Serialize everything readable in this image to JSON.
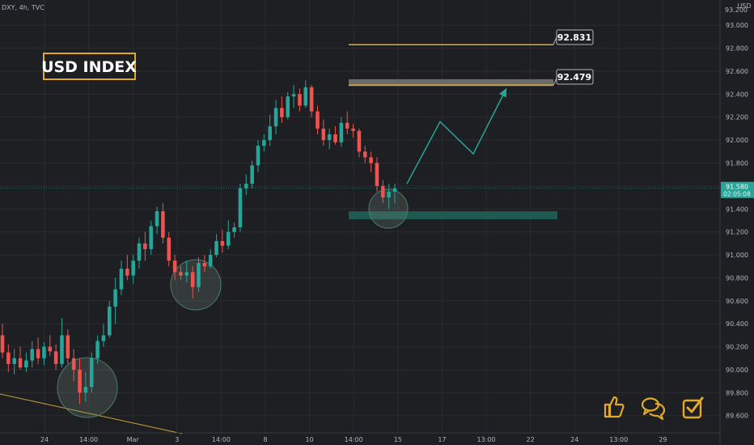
{
  "header": {
    "symbol_line": "DXY, 4h, TVC"
  },
  "price_axis_currency": "USD",
  "badge": {
    "text": "USD INDEX",
    "color": "#e3a92a"
  },
  "annotations": {
    "target1": "92.831",
    "target2": "92.479"
  },
  "current_price": {
    "price": "91.580",
    "countdown": "02:05:08"
  },
  "icons": [
    "thumbs-up-icon",
    "chat-icon",
    "checkbox-icon"
  ],
  "colors": {
    "up": "#26a69a",
    "down": "#ef5350",
    "accent": "#e3a92a",
    "zone": "#1f5a52",
    "resistance_zone": "#6b6b6b",
    "arrow": "#26a69a"
  },
  "chart_data": {
    "type": "candlestick",
    "timeframe": "4h",
    "y_ticks": [
      "93.000",
      "92.800",
      "92.600",
      "92.400",
      "92.200",
      "92.000",
      "91.800",
      "91.600",
      "91.400",
      "91.200",
      "91.000",
      "90.800",
      "90.600",
      "90.400",
      "90.200",
      "90.000",
      "89.800",
      "89.600"
    ],
    "y_top_cut_label": "93.200",
    "x_ticks": [
      "24",
      "14:00",
      "Mar",
      "3",
      "14:00",
      "8",
      "10",
      "14:00",
      "15",
      "17",
      "13:00",
      "22",
      "24",
      "13:00",
      "29"
    ],
    "ylim": [
      89.45,
      93.22
    ],
    "candles": [
      [
        90.3,
        90.4,
        90.1,
        90.15
      ],
      [
        90.15,
        90.22,
        89.98,
        90.05
      ],
      [
        90.05,
        90.18,
        89.96,
        90.1
      ],
      [
        90.1,
        90.2,
        90.0,
        90.02
      ],
      [
        90.02,
        90.15,
        89.98,
        90.08
      ],
      [
        90.08,
        90.25,
        90.02,
        90.18
      ],
      [
        90.18,
        90.28,
        90.05,
        90.1
      ],
      [
        90.1,
        90.24,
        90.04,
        90.2
      ],
      [
        90.2,
        90.3,
        90.12,
        90.16
      ],
      [
        90.16,
        90.22,
        90.0,
        90.05
      ],
      [
        90.05,
        90.45,
        90.02,
        90.3
      ],
      [
        90.3,
        90.35,
        90.05,
        90.1
      ],
      [
        90.1,
        90.18,
        89.9,
        90.0
      ],
      [
        90.0,
        90.1,
        89.7,
        89.8
      ],
      [
        89.8,
        89.98,
        89.72,
        89.85
      ],
      [
        89.85,
        90.15,
        89.8,
        90.1
      ],
      [
        90.1,
        90.3,
        90.05,
        90.25
      ],
      [
        90.25,
        90.4,
        90.2,
        90.3
      ],
      [
        90.3,
        90.6,
        90.28,
        90.55
      ],
      [
        90.55,
        90.8,
        90.4,
        90.7
      ],
      [
        90.7,
        90.95,
        90.65,
        90.88
      ],
      [
        90.88,
        91.0,
        90.78,
        90.82
      ],
      [
        90.82,
        91.0,
        90.75,
        90.95
      ],
      [
        90.95,
        91.15,
        90.88,
        91.1
      ],
      [
        91.1,
        91.2,
        90.95,
        91.05
      ],
      [
        91.05,
        91.3,
        91.0,
        91.25
      ],
      [
        91.25,
        91.42,
        91.18,
        91.38
      ],
      [
        91.38,
        91.45,
        91.1,
        91.15
      ],
      [
        91.15,
        91.2,
        90.9,
        90.95
      ],
      [
        90.95,
        91.0,
        90.78,
        90.85
      ],
      [
        90.85,
        90.9,
        90.78,
        90.82
      ],
      [
        90.82,
        90.95,
        90.76,
        90.85
      ],
      [
        90.85,
        90.9,
        90.62,
        90.72
      ],
      [
        90.72,
        90.98,
        90.68,
        90.93
      ],
      [
        90.93,
        91.0,
        90.85,
        90.9
      ],
      [
        90.9,
        91.05,
        90.88,
        91.0
      ],
      [
        91.0,
        91.18,
        90.98,
        91.12
      ],
      [
        91.12,
        91.22,
        91.02,
        91.08
      ],
      [
        91.08,
        91.3,
        91.05,
        91.2
      ],
      [
        91.2,
        91.28,
        91.15,
        91.24
      ],
      [
        91.24,
        91.62,
        91.2,
        91.58
      ],
      [
        91.58,
        91.7,
        91.52,
        91.62
      ],
      [
        91.62,
        91.82,
        91.58,
        91.78
      ],
      [
        91.78,
        92.0,
        91.72,
        91.95
      ],
      [
        91.95,
        92.05,
        91.9,
        92.0
      ],
      [
        92.0,
        92.22,
        91.95,
        92.12
      ],
      [
        92.12,
        92.35,
        92.05,
        92.28
      ],
      [
        92.28,
        92.38,
        92.15,
        92.2
      ],
      [
        92.2,
        92.42,
        92.18,
        92.38
      ],
      [
        92.38,
        92.48,
        92.28,
        92.4
      ],
      [
        92.4,
        92.45,
        92.25,
        92.3
      ],
      [
        92.3,
        92.52,
        92.28,
        92.46
      ],
      [
        92.46,
        92.48,
        92.2,
        92.25
      ],
      [
        92.25,
        92.3,
        92.05,
        92.1
      ],
      [
        92.1,
        92.18,
        91.95,
        92.0
      ],
      [
        92.0,
        92.1,
        91.92,
        92.05
      ],
      [
        92.05,
        92.12,
        91.96,
        91.98
      ],
      [
        91.98,
        92.2,
        91.94,
        92.15
      ],
      [
        92.15,
        92.25,
        92.05,
        92.1
      ],
      [
        92.1,
        92.14,
        92.02,
        92.08
      ],
      [
        92.08,
        92.1,
        91.85,
        91.9
      ],
      [
        91.9,
        91.95,
        91.8,
        91.85
      ],
      [
        91.85,
        91.9,
        91.72,
        91.8
      ],
      [
        91.8,
        91.85,
        91.55,
        91.6
      ],
      [
        91.6,
        91.65,
        91.45,
        91.5
      ],
      [
        91.5,
        91.62,
        91.4,
        91.55
      ],
      [
        91.55,
        91.62,
        91.45,
        91.58
      ]
    ],
    "levels": [
      {
        "name": "target-line-upper",
        "price": 92.831
      },
      {
        "name": "target-line-lower",
        "price": 92.479
      },
      {
        "name": "current-price-line",
        "price": 91.58
      }
    ],
    "zones": [
      {
        "name": "resistance-zone",
        "top": 92.53,
        "bottom": 92.47
      },
      {
        "name": "support-zone",
        "top": 91.38,
        "bottom": 91.31
      }
    ],
    "projection_path": [
      [
        92.0,
        91.62
      ],
      [
        92.9,
        92.16
      ],
      [
        93.8,
        91.88
      ],
      [
        94.7,
        92.45
      ]
    ]
  }
}
